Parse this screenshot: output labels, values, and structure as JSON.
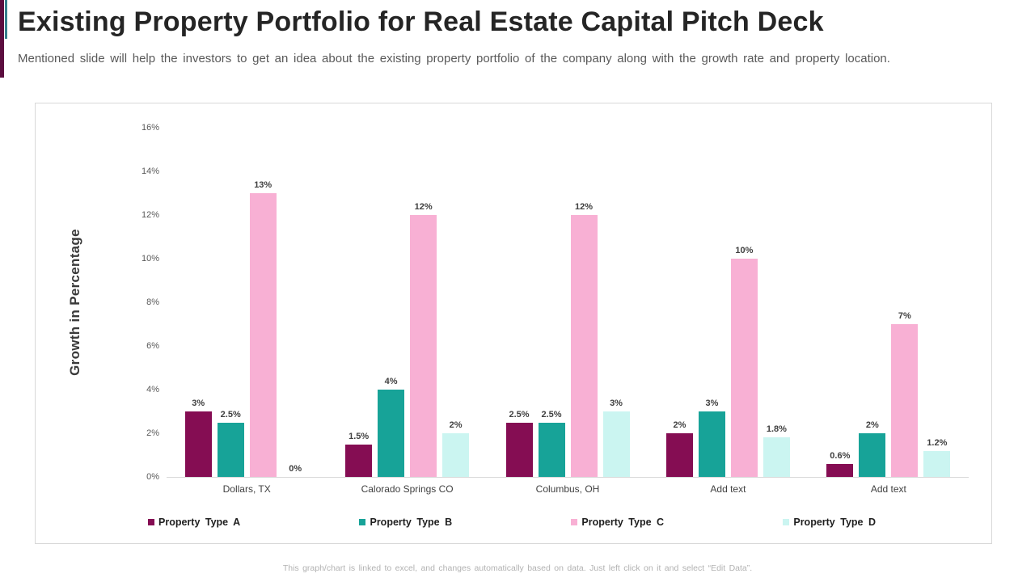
{
  "header": {
    "title": "Existing Property Portfolio for Real Estate Capital Pitch Deck",
    "subtitle": "Mentioned slide will help the investors to get an idea about the existing property portfolio of the company along with the growth rate and property location.",
    "accent_colors": {
      "maroon": "#5C0D3F",
      "teal": "#35808D"
    }
  },
  "chart_data": {
    "type": "bar",
    "title": "",
    "xlabel": "",
    "ylabel": "Growth in Percentage",
    "ylim": [
      0,
      16
    ],
    "ytick_step": 2,
    "ytick_labels": [
      "0%",
      "2%",
      "4%",
      "6%",
      "8%",
      "10%",
      "12%",
      "14%",
      "16%"
    ],
    "grid": false,
    "legend_position": "bottom",
    "categories": [
      "Dollars, TX",
      "Calorado Springs CO",
      "Columbus, OH",
      "Add text",
      "Add text"
    ],
    "series": [
      {
        "name": "Property Type A",
        "color": "#850D53",
        "values": [
          3,
          1.5,
          2.5,
          2,
          0.6
        ],
        "labels": [
          "3%",
          "1.5%",
          "2.5%",
          "2%",
          "0.6%"
        ]
      },
      {
        "name": "Property Type B",
        "color": "#17A398",
        "values": [
          2.5,
          4,
          2.5,
          3,
          2
        ],
        "labels": [
          "2.5%",
          "4%",
          "2.5%",
          "3%",
          "2%"
        ]
      },
      {
        "name": "Property Type C",
        "color": "#F8B0D4",
        "values": [
          13,
          12,
          12,
          10,
          7
        ],
        "labels": [
          "13%",
          "12%",
          "12%",
          "10%",
          "7%"
        ]
      },
      {
        "name": "Property Type D",
        "color": "#CBF5F1",
        "values": [
          0,
          2,
          3,
          1.8,
          1.2
        ],
        "labels": [
          "0%",
          "2%",
          "3%",
          "1.8%",
          "1.2%"
        ]
      }
    ]
  },
  "footer": {
    "note": "This graph/chart is linked to excel,  and changes automatically based on data. Just left click on it and select “Edit Data”."
  }
}
